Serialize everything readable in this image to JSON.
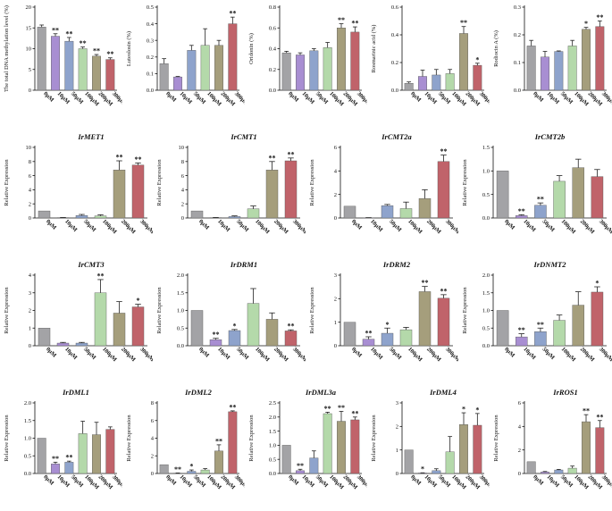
{
  "palette": [
    "#a3a3a6",
    "#a88ed2",
    "#8ea3cc",
    "#b4d9aa",
    "#a59e7c",
    "#c0636a"
  ],
  "bar_edge": "#555555",
  "categories": [
    "0μM",
    "10μM",
    "50μM",
    "100μM",
    "200μM",
    "300μM"
  ],
  "chart_data": [
    {
      "type": "bar",
      "title": "",
      "ylabel": "The total DNA methylation level (%)",
      "ylim": [
        0,
        20
      ],
      "yticks": [
        0,
        5,
        10,
        15,
        20
      ],
      "values": [
        15.2,
        13.0,
        11.8,
        10.0,
        8.2,
        7.4
      ],
      "errors": [
        0.5,
        0.6,
        0.9,
        0.4,
        0.4,
        0.4
      ],
      "stars": [
        "",
        "**",
        "**",
        "**",
        "**",
        "**"
      ]
    },
    {
      "type": "bar",
      "title": "",
      "ylabel": "Luteolosin (%)",
      "ylim": [
        0,
        0.5
      ],
      "yticks": [
        0.0,
        0.1,
        0.2,
        0.3,
        0.4,
        0.5
      ],
      "values": [
        0.16,
        0.08,
        0.24,
        0.27,
        0.27,
        0.4
      ],
      "errors": [
        0.03,
        0.003,
        0.03,
        0.1,
        0.03,
        0.04
      ],
      "stars": [
        "",
        "",
        "",
        "",
        "",
        "**"
      ]
    },
    {
      "type": "bar",
      "title": "",
      "ylabel": "Oridonin (%)",
      "ylim": [
        0,
        0.8
      ],
      "yticks": [
        0.0,
        0.2,
        0.4,
        0.6,
        0.8
      ],
      "values": [
        0.36,
        0.34,
        0.38,
        0.41,
        0.6,
        0.56
      ],
      "errors": [
        0.015,
        0.02,
        0.02,
        0.05,
        0.04,
        0.05
      ],
      "stars": [
        "",
        "",
        "",
        "",
        "**",
        "**"
      ]
    },
    {
      "type": "bar",
      "title": "",
      "ylabel": "Rosmarinic acid (%)",
      "ylim": [
        0,
        0.6
      ],
      "yticks": [
        0.0,
        0.2,
        0.4,
        0.6
      ],
      "values": [
        0.05,
        0.1,
        0.11,
        0.12,
        0.41,
        0.18
      ],
      "errors": [
        0.01,
        0.045,
        0.04,
        0.03,
        0.05,
        0.015
      ],
      "stars": [
        "",
        "",
        "",
        "",
        "**",
        "*"
      ]
    },
    {
      "type": "bar",
      "title": "",
      "ylabel": "Rodiocin A (%)",
      "ylim": [
        0,
        0.3
      ],
      "yticks": [
        0.0,
        0.1,
        0.2,
        0.3
      ],
      "values": [
        0.16,
        0.12,
        0.14,
        0.16,
        0.22,
        0.23
      ],
      "errors": [
        0.02,
        0.02,
        0.002,
        0.02,
        0.007,
        0.02
      ],
      "stars": [
        "",
        "",
        "",
        "",
        "*",
        "**"
      ]
    },
    {
      "type": "bar",
      "title": "IrMET1",
      "ylabel": "Relative Expression",
      "ylim": [
        0,
        10
      ],
      "yticks": [
        0,
        2,
        4,
        6,
        8,
        10
      ],
      "values": [
        1.0,
        0.05,
        0.35,
        0.3,
        6.8,
        7.5
      ],
      "errors": [
        0,
        0.02,
        0.15,
        0.15,
        1.3,
        0.3
      ],
      "stars": [
        "",
        "",
        "",
        "",
        "**",
        "**"
      ]
    },
    {
      "type": "bar",
      "title": "IrCMT1",
      "ylabel": "Relative Expression",
      "ylim": [
        0,
        10
      ],
      "yticks": [
        0,
        2,
        4,
        6,
        8,
        10
      ],
      "values": [
        1.0,
        0.05,
        0.2,
        1.3,
        6.8,
        8.1
      ],
      "errors": [
        0,
        0.02,
        0.1,
        0.4,
        1.2,
        0.4
      ],
      "stars": [
        "",
        "",
        "",
        "",
        "**",
        "**"
      ]
    },
    {
      "type": "bar",
      "title": "IrCMT2a",
      "ylabel": "Relative Expression",
      "ylim": [
        0,
        6
      ],
      "yticks": [
        0,
        2,
        4,
        6
      ],
      "values": [
        1.0,
        0.02,
        1.05,
        0.8,
        1.65,
        4.8
      ],
      "errors": [
        0,
        0.01,
        0.1,
        0.55,
        0.75,
        0.55
      ],
      "stars": [
        "",
        "",
        "",
        "",
        "",
        "**"
      ]
    },
    {
      "type": "bar",
      "title": "IrCMT2b",
      "ylabel": "Relative Expression",
      "ylim": [
        0,
        1.5
      ],
      "yticks": [
        0.0,
        0.5,
        1.0,
        1.5
      ],
      "values": [
        1.0,
        0.05,
        0.27,
        0.78,
        1.07,
        0.88
      ],
      "errors": [
        0,
        0.02,
        0.05,
        0.12,
        0.18,
        0.15
      ],
      "stars": [
        "",
        "**",
        "**",
        "",
        "",
        ""
      ]
    },
    {
      "type": "bar",
      "title": "IrCMT3",
      "ylabel": "Relative Expression",
      "ylim": [
        0,
        4
      ],
      "yticks": [
        0,
        1,
        2,
        3,
        4
      ],
      "values": [
        1.0,
        0.15,
        0.15,
        3.0,
        1.85,
        2.2
      ],
      "errors": [
        0,
        0.04,
        0.04,
        0.75,
        0.65,
        0.15
      ],
      "stars": [
        "",
        "",
        "",
        "**",
        "",
        "*"
      ]
    },
    {
      "type": "bar",
      "title": "IrDRM1",
      "ylabel": "Relative Expression",
      "ylim": [
        0,
        2
      ],
      "yticks": [
        0.0,
        0.5,
        1.0,
        1.5,
        2.0
      ],
      "values": [
        1.0,
        0.17,
        0.43,
        1.2,
        0.75,
        0.42
      ],
      "errors": [
        0,
        0.04,
        0.03,
        0.42,
        0.18,
        0.03
      ],
      "stars": [
        "",
        "**",
        "*",
        "",
        "",
        "**"
      ]
    },
    {
      "type": "bar",
      "title": "IrDRM2",
      "ylabel": "Relative Expression",
      "ylim": [
        0,
        3
      ],
      "yticks": [
        0,
        1,
        2,
        3
      ],
      "values": [
        1.0,
        0.28,
        0.53,
        0.68,
        2.3,
        2.02
      ],
      "errors": [
        0,
        0.1,
        0.22,
        0.1,
        0.22,
        0.15
      ],
      "stars": [
        "",
        "**",
        "*",
        "",
        "**",
        "**"
      ]
    },
    {
      "type": "bar",
      "title": "IrDNMT2",
      "ylabel": "Relative Expression",
      "ylim": [
        0,
        2
      ],
      "yticks": [
        0.0,
        0.5,
        1.0,
        1.5,
        2.0
      ],
      "values": [
        1.0,
        0.25,
        0.4,
        0.72,
        1.15,
        1.52
      ],
      "errors": [
        0,
        0.09,
        0.1,
        0.15,
        0.38,
        0.15
      ],
      "stars": [
        "",
        "**",
        "**",
        "",
        "",
        "*"
      ]
    },
    {
      "type": "bar",
      "title": "IrDML1",
      "ylabel": "Relative Expression",
      "ylim": [
        0,
        2
      ],
      "yticks": [
        0.0,
        0.5,
        1.0,
        1.5,
        2.0
      ],
      "values": [
        1.0,
        0.27,
        0.32,
        1.13,
        1.1,
        1.25
      ],
      "errors": [
        0,
        0.05,
        0.03,
        0.35,
        0.35,
        0.07
      ],
      "stars": [
        "",
        "**",
        "**",
        "",
        "",
        ""
      ]
    },
    {
      "type": "bar",
      "title": "IrDML2",
      "ylabel": "Relative Expression",
      "ylim": [
        0,
        8
      ],
      "yticks": [
        0,
        2,
        4,
        6,
        8
      ],
      "values": [
        1.0,
        0.04,
        0.25,
        0.4,
        2.55,
        7.0
      ],
      "errors": [
        0,
        0.02,
        0.15,
        0.15,
        0.7,
        0.1
      ],
      "stars": [
        "",
        "**",
        "*",
        "",
        "**",
        "**"
      ]
    },
    {
      "type": "bar",
      "title": "IrDML3a",
      "ylabel": "Relative Expression",
      "ylim": [
        0,
        2.5
      ],
      "yticks": [
        0.0,
        0.5,
        1.0,
        1.5,
        2.0,
        2.5
      ],
      "values": [
        1.0,
        0.1,
        0.55,
        2.12,
        1.85,
        1.9
      ],
      "errors": [
        0,
        0.05,
        0.25,
        0.05,
        0.35,
        0.1
      ],
      "stars": [
        "",
        "**",
        "",
        "**",
        "**",
        "**"
      ]
    },
    {
      "type": "bar",
      "title": "IrDML4",
      "ylabel": "Relative Expression",
      "ylim": [
        0,
        3
      ],
      "yticks": [
        0,
        1,
        2,
        3
      ],
      "values": [
        1.0,
        0.02,
        0.12,
        0.92,
        2.08,
        2.05
      ],
      "errors": [
        0,
        0.01,
        0.08,
        0.65,
        0.5,
        0.5
      ],
      "stars": [
        "",
        "*",
        "",
        "",
        "*",
        "*"
      ]
    },
    {
      "type": "bar",
      "title": "IrROS1",
      "ylabel": "Relative Expression",
      "ylim": [
        0,
        6
      ],
      "yticks": [
        0,
        2,
        4,
        6
      ],
      "values": [
        1.0,
        0.12,
        0.3,
        0.45,
        4.4,
        3.9
      ],
      "errors": [
        0,
        0.05,
        0.05,
        0.18,
        0.6,
        0.6
      ],
      "stars": [
        "",
        "",
        "",
        "",
        "**",
        "**"
      ]
    }
  ]
}
